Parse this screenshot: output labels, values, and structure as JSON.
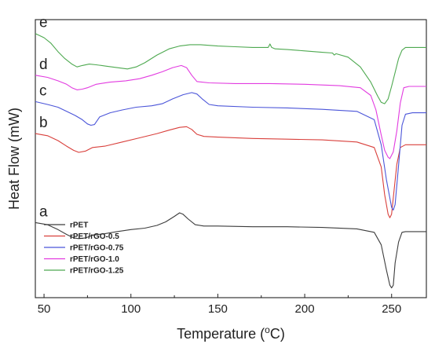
{
  "chart_data": {
    "type": "line",
    "title": "",
    "xlabel": "Temperature (°C)",
    "xlabel_main": "Temperature (",
    "xlabel_sup": "o",
    "xlabel_unit": "C)",
    "ylabel": "Heat Flow (mW)",
    "xlim": [
      45,
      270
    ],
    "x_ticks": [
      50,
      100,
      150,
      200,
      250
    ],
    "y_ticks_shown": false,
    "grid": false,
    "legend_position": "bottom-left",
    "series": [
      {
        "name": "rPET",
        "curve_label": "a",
        "color": "#3c3c3c",
        "points": [
          [
            45,
            0.54
          ],
          [
            52,
            0.525
          ],
          [
            58,
            0.49
          ],
          [
            63,
            0.455
          ],
          [
            67,
            0.43
          ],
          [
            70,
            0.425
          ],
          [
            74,
            0.43
          ],
          [
            78,
            0.45
          ],
          [
            85,
            0.46
          ],
          [
            92,
            0.475
          ],
          [
            100,
            0.49
          ],
          [
            108,
            0.5
          ],
          [
            115,
            0.52
          ],
          [
            120,
            0.545
          ],
          [
            125,
            0.585
          ],
          [
            128,
            0.61
          ],
          [
            130,
            0.6
          ],
          [
            133,
            0.565
          ],
          [
            137,
            0.525
          ],
          [
            142,
            0.515
          ],
          [
            150,
            0.515
          ],
          [
            170,
            0.51
          ],
          [
            190,
            0.51
          ],
          [
            210,
            0.505
          ],
          [
            230,
            0.495
          ],
          [
            240,
            0.47
          ],
          [
            244,
            0.38
          ],
          [
            247,
            0.2
          ],
          [
            249,
            0.09
          ],
          [
            250,
            0.07
          ],
          [
            251,
            0.09
          ],
          [
            252,
            0.25
          ],
          [
            254,
            0.4
          ],
          [
            256,
            0.47
          ],
          [
            258,
            0.475
          ],
          [
            262,
            0.475
          ],
          [
            270,
            0.475
          ]
        ]
      },
      {
        "name": "rPET/rGO-0.5",
        "curve_label": "b",
        "color": "#d9403c",
        "points": [
          [
            45,
            1.18
          ],
          [
            52,
            1.165
          ],
          [
            58,
            1.13
          ],
          [
            63,
            1.09
          ],
          [
            67,
            1.06
          ],
          [
            70,
            1.045
          ],
          [
            74,
            1.055
          ],
          [
            78,
            1.08
          ],
          [
            85,
            1.09
          ],
          [
            95,
            1.12
          ],
          [
            105,
            1.15
          ],
          [
            115,
            1.18
          ],
          [
            122,
            1.205
          ],
          [
            128,
            1.225
          ],
          [
            132,
            1.23
          ],
          [
            135,
            1.21
          ],
          [
            138,
            1.175
          ],
          [
            142,
            1.16
          ],
          [
            150,
            1.155
          ],
          [
            170,
            1.145
          ],
          [
            190,
            1.14
          ],
          [
            210,
            1.135
          ],
          [
            230,
            1.12
          ],
          [
            240,
            1.08
          ],
          [
            244,
            0.94
          ],
          [
            246,
            0.74
          ],
          [
            248,
            0.6
          ],
          [
            249,
            0.575
          ],
          [
            250,
            0.6
          ],
          [
            251,
            0.72
          ],
          [
            253,
            0.96
          ],
          [
            255,
            1.08
          ],
          [
            258,
            1.1
          ],
          [
            270,
            1.1
          ]
        ]
      },
      {
        "name": "rPET/rGO-0.75",
        "curve_label": "c",
        "color": "#4b55d9",
        "points": [
          [
            45,
            1.41
          ],
          [
            52,
            1.39
          ],
          [
            58,
            1.37
          ],
          [
            63,
            1.34
          ],
          [
            68,
            1.31
          ],
          [
            72,
            1.28
          ],
          [
            75,
            1.25
          ],
          [
            77,
            1.24
          ],
          [
            79,
            1.245
          ],
          [
            82,
            1.3
          ],
          [
            88,
            1.33
          ],
          [
            95,
            1.35
          ],
          [
            103,
            1.37
          ],
          [
            112,
            1.38
          ],
          [
            118,
            1.395
          ],
          [
            124,
            1.43
          ],
          [
            130,
            1.46
          ],
          [
            135,
            1.475
          ],
          [
            138,
            1.465
          ],
          [
            141,
            1.43
          ],
          [
            145,
            1.39
          ],
          [
            150,
            1.38
          ],
          [
            170,
            1.37
          ],
          [
            190,
            1.365
          ],
          [
            210,
            1.355
          ],
          [
            230,
            1.34
          ],
          [
            240,
            1.28
          ],
          [
            244,
            1.1
          ],
          [
            247,
            0.85
          ],
          [
            250,
            0.65
          ],
          [
            251,
            0.63
          ],
          [
            252,
            0.67
          ],
          [
            254,
            0.95
          ],
          [
            256,
            1.24
          ],
          [
            258,
            1.32
          ],
          [
            262,
            1.33
          ],
          [
            270,
            1.33
          ]
        ]
      },
      {
        "name": "rPET/rGO-1.0",
        "curve_label": "d",
        "color": "#e23be0",
        "points": [
          [
            45,
            1.6
          ],
          [
            52,
            1.585
          ],
          [
            58,
            1.56
          ],
          [
            63,
            1.535
          ],
          [
            66,
            1.51
          ],
          [
            69,
            1.495
          ],
          [
            72,
            1.5
          ],
          [
            75,
            1.51
          ],
          [
            80,
            1.535
          ],
          [
            88,
            1.55
          ],
          [
            97,
            1.56
          ],
          [
            105,
            1.575
          ],
          [
            112,
            1.6
          ],
          [
            118,
            1.625
          ],
          [
            124,
            1.655
          ],
          [
            129,
            1.67
          ],
          [
            132,
            1.655
          ],
          [
            135,
            1.6
          ],
          [
            138,
            1.555
          ],
          [
            145,
            1.545
          ],
          [
            160,
            1.54
          ],
          [
            180,
            1.54
          ],
          [
            200,
            1.535
          ],
          [
            220,
            1.525
          ],
          [
            232,
            1.51
          ],
          [
            238,
            1.455
          ],
          [
            241,
            1.35
          ],
          [
            244,
            1.17
          ],
          [
            246,
            1.06
          ],
          [
            248,
            1.01
          ],
          [
            249,
            1.0
          ],
          [
            251,
            1.05
          ],
          [
            253,
            1.2
          ],
          [
            255,
            1.4
          ],
          [
            257,
            1.51
          ],
          [
            260,
            1.52
          ],
          [
            270,
            1.52
          ]
        ]
      },
      {
        "name": "rPET/rGO-1.25",
        "curve_label": "e",
        "color": "#4ea950",
        "points": [
          [
            45,
            1.9
          ],
          [
            50,
            1.87
          ],
          [
            54,
            1.83
          ],
          [
            58,
            1.77
          ],
          [
            62,
            1.72
          ],
          [
            66,
            1.68
          ],
          [
            69,
            1.66
          ],
          [
            72,
            1.67
          ],
          [
            76,
            1.68
          ],
          [
            80,
            1.675
          ],
          [
            86,
            1.665
          ],
          [
            92,
            1.655
          ],
          [
            98,
            1.645
          ],
          [
            103,
            1.66
          ],
          [
            108,
            1.69
          ],
          [
            115,
            1.745
          ],
          [
            122,
            1.79
          ],
          [
            128,
            1.81
          ],
          [
            134,
            1.82
          ],
          [
            140,
            1.82
          ],
          [
            150,
            1.81
          ],
          [
            160,
            1.805
          ],
          [
            170,
            1.8
          ],
          [
            176,
            1.8
          ],
          [
            179,
            1.8
          ],
          [
            180,
            1.825
          ],
          [
            181,
            1.8
          ],
          [
            183,
            1.79
          ],
          [
            190,
            1.785
          ],
          [
            200,
            1.775
          ],
          [
            210,
            1.765
          ],
          [
            216,
            1.76
          ],
          [
            217,
            1.745
          ],
          [
            218,
            1.755
          ],
          [
            225,
            1.73
          ],
          [
            232,
            1.66
          ],
          [
            238,
            1.55
          ],
          [
            242,
            1.45
          ],
          [
            244,
            1.405
          ],
          [
            246,
            1.395
          ],
          [
            248,
            1.43
          ],
          [
            250,
            1.52
          ],
          [
            252,
            1.62
          ],
          [
            254,
            1.72
          ],
          [
            256,
            1.78
          ],
          [
            258,
            1.8
          ],
          [
            262,
            1.8
          ],
          [
            270,
            1.8
          ]
        ]
      }
    ]
  },
  "colors": {
    "background": "#ffffff",
    "axis": "#222222"
  }
}
